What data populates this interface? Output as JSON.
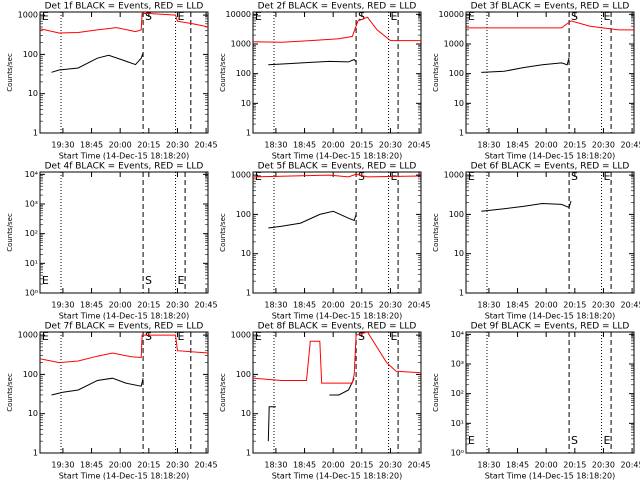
{
  "chart_data": [
    {
      "type": "line",
      "title": "Det 1f BLACK = Events, RED = LLD",
      "xlabel": "Start Time (14-Dec-15 18:18:20)",
      "ylabel": "Counts/sec",
      "log_y": true,
      "xlim": [
        0,
        88
      ],
      "xticks": [
        {
          "value": 12,
          "label": "19:30"
        },
        {
          "value": 27,
          "label": "18:45"
        },
        {
          "value": 42,
          "label": "20:00"
        },
        {
          "value": 57,
          "label": "20:15"
        },
        {
          "value": 72,
          "label": "20:30"
        },
        {
          "value": 87,
          "label": "20:45"
        }
      ],
      "ylim": [
        1,
        1200
      ],
      "yticks": [
        1,
        10,
        100,
        1000
      ],
      "markers": [
        {
          "x": 11,
          "style": "dotted"
        },
        {
          "x": 54,
          "style": "dashed"
        },
        {
          "x": 71,
          "style": "dotted"
        },
        {
          "x": 79,
          "style": "dashed"
        }
      ],
      "annotations": [
        {
          "text": "E",
          "x": 1
        },
        {
          "text": "S",
          "x": 55
        },
        {
          "text": "E",
          "x": 72
        }
      ],
      "annotation_position": "top",
      "series": [
        {
          "name": "Events",
          "color": "#000000",
          "x": [
            6,
            10,
            20,
            30,
            36,
            44,
            50,
            53,
            54
          ],
          "values": [
            35,
            40,
            45,
            80,
            95,
            70,
            55,
            80,
            110
          ]
        },
        {
          "name": "LLD",
          "color": "#ff0000",
          "x": [
            0,
            10,
            20,
            30,
            40,
            50,
            53,
            53.5,
            57,
            71,
            72,
            80,
            88
          ],
          "values": [
            450,
            350,
            360,
            420,
            480,
            380,
            420,
            1100,
            1100,
            1000,
            700,
            600,
            500
          ]
        }
      ]
    },
    {
      "type": "line",
      "title": "Det 2f BLACK = Events, RED = LLD",
      "xlabel": "Start Time (14-Dec-15 18:18:20)",
      "ylabel": "Counts/sec",
      "log_y": true,
      "xlim": [
        0,
        88
      ],
      "xticks": [
        {
          "value": 12,
          "label": "18:30"
        },
        {
          "value": 27,
          "label": "18:45"
        },
        {
          "value": 42,
          "label": "20:00"
        },
        {
          "value": 57,
          "label": "20:15"
        },
        {
          "value": 72,
          "label": "20:30"
        },
        {
          "value": 87,
          "label": "20:45"
        }
      ],
      "ylim": [
        1,
        12000
      ],
      "yticks": [
        1,
        10,
        100,
        1000,
        10000
      ],
      "markers": [
        {
          "x": 11,
          "style": "dotted"
        },
        {
          "x": 54,
          "style": "dashed"
        },
        {
          "x": 71,
          "style": "dotted"
        },
        {
          "x": 76,
          "style": "dashed"
        }
      ],
      "annotations": [
        {
          "text": "E",
          "x": 1
        },
        {
          "text": "S",
          "x": 55
        },
        {
          "text": "E",
          "x": 72
        }
      ],
      "annotation_position": "top",
      "series": [
        {
          "name": "Events",
          "color": "#000000",
          "x": [
            8,
            20,
            30,
            40,
            50,
            53,
            54
          ],
          "values": [
            200,
            220,
            240,
            260,
            250,
            300,
            250
          ]
        },
        {
          "name": "LLD",
          "color": "#ff0000",
          "x": [
            0,
            15,
            30,
            45,
            52,
            55,
            60,
            65,
            72,
            88
          ],
          "values": [
            1200,
            1150,
            1300,
            1500,
            1800,
            6000,
            8000,
            3000,
            1300,
            1300
          ]
        }
      ]
    },
    {
      "type": "line",
      "title": "Det 3f BLACK = Events, RED = LLD",
      "xlabel": "Start Time (14-Dec-15 18:18:20)",
      "ylabel": "Counts/sec",
      "log_y": true,
      "xlim": [
        0,
        88
      ],
      "xticks": [
        {
          "value": 12,
          "label": "18:30"
        },
        {
          "value": 27,
          "label": "18:45"
        },
        {
          "value": 42,
          "label": "20:00"
        },
        {
          "value": 57,
          "label": "20:15"
        },
        {
          "value": 72,
          "label": "20:30"
        },
        {
          "value": 87,
          "label": "20:45"
        }
      ],
      "ylim": [
        1,
        12000
      ],
      "yticks": [
        1,
        10,
        100,
        1000,
        10000
      ],
      "markers": [
        {
          "x": 11,
          "style": "dotted"
        },
        {
          "x": 54,
          "style": "dashed"
        },
        {
          "x": 71,
          "style": "dotted"
        },
        {
          "x": 76,
          "style": "dashed"
        }
      ],
      "annotations": [
        {
          "text": "E",
          "x": 1
        },
        {
          "text": "S",
          "x": 55
        },
        {
          "text": "E",
          "x": 72
        }
      ],
      "annotation_position": "top",
      "series": [
        {
          "name": "Events",
          "color": "#000000",
          "x": [
            8,
            20,
            30,
            40,
            50,
            53,
            54
          ],
          "values": [
            110,
            120,
            160,
            200,
            230,
            200,
            350
          ]
        },
        {
          "name": "LLD",
          "color": "#ff0000",
          "x": [
            0,
            25,
            50,
            55,
            65,
            80,
            88
          ],
          "values": [
            3500,
            3500,
            3500,
            6000,
            4000,
            3000,
            3000
          ]
        }
      ]
    },
    {
      "type": "line",
      "title": "Det 4f BLACK = Events, RED = LLD",
      "xlabel": "Start Time (14-Dec-15 18:18:20)",
      "ylabel": "Counts/sec",
      "log_y": true,
      "xlim": [
        0,
        88
      ],
      "xticks": [
        {
          "value": 12,
          "label": "19:30"
        },
        {
          "value": 27,
          "label": "18:45"
        },
        {
          "value": 42,
          "label": "20:00"
        },
        {
          "value": 57,
          "label": "20:15"
        },
        {
          "value": 72,
          "label": "20:30"
        },
        {
          "value": 87,
          "label": "20:45"
        }
      ],
      "ylim": [
        1,
        12000
      ],
      "yticks": [
        {
          "value": 1,
          "label": "10⁰"
        },
        {
          "value": 10,
          "label": "10¹"
        },
        {
          "value": 100,
          "label": "10²"
        },
        {
          "value": 1000,
          "label": "10³"
        },
        {
          "value": 10000,
          "label": "10⁴"
        }
      ],
      "markers": [
        {
          "x": 11,
          "style": "dotted"
        },
        {
          "x": 54,
          "style": "dashed"
        },
        {
          "x": 71,
          "style": "dotted"
        },
        {
          "x": 76,
          "style": "dashed"
        }
      ],
      "annotations": [
        {
          "text": "E",
          "x": 1
        },
        {
          "text": "S",
          "x": 55
        },
        {
          "text": "E",
          "x": 72
        }
      ],
      "annotation_position": "bottom",
      "series": []
    },
    {
      "type": "line",
      "title": "Det 5f BLACK = Events, RED = LLD",
      "xlabel": "Start Time (14-Dec-15 18:18:20)",
      "ylabel": "Counts/sec",
      "log_y": true,
      "xlim": [
        0,
        88
      ],
      "xticks": [
        {
          "value": 12,
          "label": "18:30"
        },
        {
          "value": 27,
          "label": "18:45"
        },
        {
          "value": 42,
          "label": "20:00"
        },
        {
          "value": 57,
          "label": "20:15"
        },
        {
          "value": 72,
          "label": "20:30"
        },
        {
          "value": 87,
          "label": "20:45"
        }
      ],
      "ylim": [
        1,
        1200
      ],
      "yticks": [
        1,
        10,
        100,
        1000
      ],
      "markers": [
        {
          "x": 11,
          "style": "dotted"
        },
        {
          "x": 54,
          "style": "dashed"
        },
        {
          "x": 71,
          "style": "dotted"
        },
        {
          "x": 76,
          "style": "dashed"
        }
      ],
      "annotations": [
        {
          "text": "E",
          "x": 1
        },
        {
          "text": "S",
          "x": 55
        },
        {
          "text": "E",
          "x": 72
        }
      ],
      "annotation_position": "top",
      "series": [
        {
          "name": "Events",
          "color": "#000000",
          "x": [
            8,
            15,
            25,
            35,
            42,
            50,
            53,
            54
          ],
          "values": [
            45,
            50,
            60,
            100,
            120,
            80,
            70,
            100
          ]
        },
        {
          "name": "LLD",
          "color": "#ff0000",
          "x": [
            0,
            20,
            40,
            50,
            54,
            60,
            88
          ],
          "values": [
            900,
            950,
            1000,
            900,
            1050,
            900,
            950
          ]
        }
      ]
    },
    {
      "type": "line",
      "title": "Det 6f BLACK = Events, RED = LLD",
      "xlabel": "Start Time (14-Dec-15 18:18:20)",
      "ylabel": "Counts/sec",
      "log_y": true,
      "xlim": [
        0,
        88
      ],
      "xticks": [
        {
          "value": 12,
          "label": "18:30"
        },
        {
          "value": 27,
          "label": "18:45"
        },
        {
          "value": 42,
          "label": "20:00"
        },
        {
          "value": 57,
          "label": "20:15"
        },
        {
          "value": 72,
          "label": "20:30"
        },
        {
          "value": 87,
          "label": "20:45"
        }
      ],
      "ylim": [
        1,
        1200
      ],
      "yticks": [
        1,
        10,
        100,
        1000
      ],
      "markers": [
        {
          "x": 11,
          "style": "dotted"
        },
        {
          "x": 54,
          "style": "dashed"
        },
        {
          "x": 71,
          "style": "dotted"
        },
        {
          "x": 76,
          "style": "dashed"
        }
      ],
      "annotations": [
        {
          "text": "E",
          "x": 1
        },
        {
          "text": "S",
          "x": 55
        },
        {
          "text": "E",
          "x": 72
        }
      ],
      "annotation_position": "top",
      "series": [
        {
          "name": "Events",
          "color": "#000000",
          "x": [
            8,
            20,
            30,
            40,
            50,
            54,
            55
          ],
          "values": [
            120,
            140,
            160,
            190,
            180,
            150,
            220
          ]
        }
      ]
    },
    {
      "type": "line",
      "title": "Det 7f BLACK = Events, RED = LLD",
      "xlabel": "Start Time (14-Dec-15 18:18:20)",
      "ylabel": "Counts/sec",
      "log_y": true,
      "xlim": [
        0,
        88
      ],
      "xticks": [
        {
          "value": 12,
          "label": "19:30"
        },
        {
          "value": 27,
          "label": "18:45"
        },
        {
          "value": 42,
          "label": "20:00"
        },
        {
          "value": 57,
          "label": "20:15"
        },
        {
          "value": 72,
          "label": "20:30"
        },
        {
          "value": 87,
          "label": "20:45"
        }
      ],
      "ylim": [
        1,
        1200
      ],
      "yticks": [
        1,
        10,
        100,
        1000
      ],
      "markers": [
        {
          "x": 11,
          "style": "dotted"
        },
        {
          "x": 54,
          "style": "dashed"
        },
        {
          "x": 71,
          "style": "dotted"
        },
        {
          "x": 79,
          "style": "dashed"
        }
      ],
      "annotations": [
        {
          "text": "E",
          "x": 1
        },
        {
          "text": "S",
          "x": 55
        },
        {
          "text": "E",
          "x": 72
        }
      ],
      "annotation_position": "top",
      "series": [
        {
          "name": "Events",
          "color": "#000000",
          "x": [
            6,
            12,
            20,
            30,
            38,
            45,
            53,
            54
          ],
          "values": [
            30,
            35,
            40,
            70,
            80,
            60,
            50,
            80
          ]
        },
        {
          "name": "LLD",
          "color": "#ff0000",
          "x": [
            0,
            10,
            20,
            30,
            38,
            48,
            53,
            53.5,
            56,
            71,
            72,
            88
          ],
          "values": [
            250,
            200,
            220,
            290,
            350,
            280,
            270,
            1000,
            1000,
            1000,
            400,
            350
          ]
        }
      ]
    },
    {
      "type": "line",
      "title": "Det 8f BLACK = Events, RED = LLD",
      "xlabel": "Start Time (14-Dec-15 18:18:20)",
      "ylabel": "Counts/sec",
      "log_y": true,
      "xlim": [
        0,
        88
      ],
      "xticks": [
        {
          "value": 12,
          "label": "18:30"
        },
        {
          "value": 27,
          "label": "18:45"
        },
        {
          "value": 42,
          "label": "20:00"
        },
        {
          "value": 57,
          "label": "20:15"
        },
        {
          "value": 72,
          "label": "20:30"
        },
        {
          "value": 87,
          "label": "20:45"
        }
      ],
      "ylim": [
        1,
        1200
      ],
      "yticks": [
        1,
        10,
        100,
        1000
      ],
      "markers": [
        {
          "x": 11,
          "style": "dotted"
        },
        {
          "x": 54,
          "style": "dashed"
        },
        {
          "x": 71,
          "style": "dotted"
        },
        {
          "x": 76,
          "style": "dashed"
        }
      ],
      "annotations": [
        {
          "text": "E",
          "x": 1
        },
        {
          "text": "S",
          "x": 55
        },
        {
          "text": "E",
          "x": 72
        }
      ],
      "annotation_position": "top",
      "series": [
        {
          "name": "Events",
          "color": "#000000",
          "x": [
            8,
            8.5,
            12,
            25,
            40,
            45,
            50,
            53
          ],
          "values": [
            2,
            15,
            15,
            null,
            30,
            30,
            40,
            80
          ]
        },
        {
          "name": "LLD",
          "color": "#ff0000",
          "x": [
            0,
            15,
            28,
            30,
            35,
            36,
            52,
            53,
            54,
            60,
            70,
            75,
            88
          ],
          "values": [
            80,
            70,
            70,
            700,
            700,
            60,
            60,
            100,
            1000,
            1200,
            200,
            120,
            110
          ]
        }
      ]
    },
    {
      "type": "line",
      "title": "Det 9f BLACK = Events, RED = LLD",
      "xlabel": "Start Time (14-Dec-15 18:18:20)",
      "ylabel": "Counts/sec",
      "log_y": true,
      "xlim": [
        0,
        88
      ],
      "xticks": [
        {
          "value": 12,
          "label": "18:30"
        },
        {
          "value": 27,
          "label": "18:45"
        },
        {
          "value": 42,
          "label": "20:00"
        },
        {
          "value": 57,
          "label": "20:15"
        },
        {
          "value": 72,
          "label": "20:30"
        },
        {
          "value": 87,
          "label": "20:45"
        }
      ],
      "ylim": [
        1,
        12000
      ],
      "yticks": [
        {
          "value": 1,
          "label": "10⁰"
        },
        {
          "value": 10,
          "label": "10¹"
        },
        {
          "value": 100,
          "label": "10²"
        },
        {
          "value": 1000,
          "label": "10³"
        },
        {
          "value": 10000,
          "label": "10⁴"
        }
      ],
      "markers": [
        {
          "x": 11,
          "style": "dotted"
        },
        {
          "x": 54,
          "style": "dashed"
        },
        {
          "x": 71,
          "style": "dotted"
        },
        {
          "x": 76,
          "style": "dashed"
        }
      ],
      "annotations": [
        {
          "text": "E",
          "x": 1
        },
        {
          "text": "S",
          "x": 55
        },
        {
          "text": "E",
          "x": 72
        }
      ],
      "annotation_position": "bottom",
      "series": []
    }
  ]
}
